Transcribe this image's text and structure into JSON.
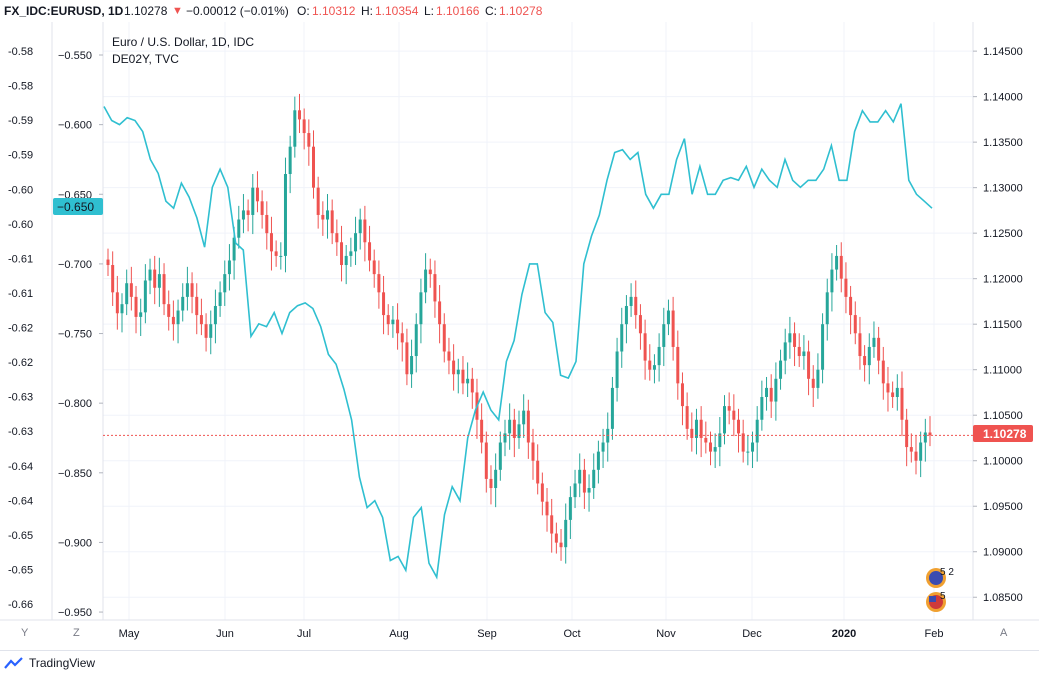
{
  "header": {
    "symbol": "FX_IDC:EURUSD, 1D",
    "last": "1.10278",
    "change": "−0.00012 (−0.01%)",
    "o_label": "O:",
    "o_value": "1.10312",
    "h_label": "H:",
    "h_value": "1.10354",
    "l_label": "L:",
    "l_value": "1.10166",
    "c_label": "C:",
    "c_value": "1.10278"
  },
  "legend": {
    "title": "Euro / U.S. Dollar, 1D, IDC",
    "overlay": "DE02Y, TVC"
  },
  "colors": {
    "up": "#26a69a",
    "down": "#ef5350",
    "overlay_line": "#2fbfd0",
    "price_badge": "#ef5350",
    "overlay_badge": "#2fbfd0",
    "grid": "#f0f3fa"
  },
  "footer": {
    "brand": "TradingView",
    "logo_icon": "tradingview-logo-icon"
  },
  "axis_buttons": {
    "left_y": "Y",
    "left_z": "Z",
    "right_a": "A"
  },
  "chart_data": [
    {
      "type": "candlestick",
      "series_name": "EURUSD",
      "x": [
        "May",
        "Jun",
        "Jul",
        "Aug",
        "Sep",
        "Oct",
        "Nov",
        "Dec",
        "2020",
        "Feb"
      ],
      "y_axis_right": {
        "ticks": [
          "1.14500",
          "1.14000",
          "1.13500",
          "1.13000",
          "1.12500",
          "1.12000",
          "1.11500",
          "1.11000",
          "1.10500",
          "1.10000",
          "1.09500",
          "1.09000",
          "1.08500"
        ],
        "ylim": [
          1.0825,
          1.1482
        ]
      },
      "closes": [
        1.1215,
        1.1185,
        1.1162,
        1.1172,
        1.1195,
        1.118,
        1.1158,
        1.1163,
        1.1198,
        1.121,
        1.119,
        1.1205,
        1.1172,
        1.1158,
        1.115,
        1.1165,
        1.118,
        1.1195,
        1.118,
        1.116,
        1.115,
        1.1135,
        1.115,
        1.117,
        1.1185,
        1.1205,
        1.122,
        1.1245,
        1.1265,
        1.1275,
        1.127,
        1.13,
        1.1285,
        1.127,
        1.125,
        1.123,
        1.1225,
        1.1225,
        1.1315,
        1.1345,
        1.1385,
        1.1375,
        1.136,
        1.1345,
        1.13,
        1.127,
        1.1265,
        1.1275,
        1.125,
        1.124,
        1.1215,
        1.1225,
        1.123,
        1.125,
        1.1265,
        1.124,
        1.122,
        1.1205,
        1.1185,
        1.116,
        1.115,
        1.1155,
        1.114,
        1.113,
        1.1095,
        1.1115,
        1.115,
        1.1185,
        1.121,
        1.1205,
        1.1175,
        1.115,
        1.112,
        1.111,
        1.1095,
        1.11,
        1.1085,
        1.109,
        1.1075,
        1.1045,
        1.102,
        1.098,
        1.097,
        1.099,
        1.102,
        1.103,
        1.1045,
        1.1025,
        1.104,
        1.1055,
        1.102,
        1.1,
        1.0975,
        1.0955,
        1.094,
        1.092,
        1.091,
        1.0905,
        1.0935,
        1.096,
        1.0975,
        1.099,
        1.0965,
        1.097,
        1.099,
        1.101,
        1.102,
        1.1035,
        1.108,
        1.112,
        1.115,
        1.117,
        1.118,
        1.116,
        1.114,
        1.111,
        1.11,
        1.1105,
        1.1125,
        1.115,
        1.1165,
        1.1125,
        1.1085,
        1.106,
        1.1035,
        1.1025,
        1.1045,
        1.1025,
        1.102,
        1.101,
        1.1015,
        1.103,
        1.106,
        1.1055,
        1.1045,
        1.103,
        1.101,
        1.101,
        1.102,
        1.1045,
        1.107,
        1.108,
        1.1065,
        1.109,
        1.111,
        1.113,
        1.114,
        1.1125,
        1.1115,
        1.112,
        1.109,
        1.108,
        1.11,
        1.115,
        1.1185,
        1.121,
        1.1225,
        1.12,
        1.118,
        1.116,
        1.114,
        1.1115,
        1.1105,
        1.1125,
        1.1135,
        1.111,
        1.1085,
        1.1075,
        1.107,
        1.108,
        1.1045,
        1.1015,
        1.101,
        1.1,
        1.102,
        1.1031,
        1.1028
      ]
    },
    {
      "type": "line",
      "series_name": "DE02Y, TVC",
      "y_axis_left_outer": {
        "ticks": [
          "-0.58",
          "-0.58",
          "-0.59",
          "-0.59",
          "-0.60",
          "-0.60",
          "-0.61",
          "-0.61",
          "-0.62",
          "-0.62",
          "-0.63",
          "-0.63",
          "-0.64",
          "-0.64",
          "-0.65",
          "-0.65",
          "-0.66"
        ]
      },
      "y_axis_left": {
        "ticks": [
          "−0.550",
          "−0.600",
          "−0.650",
          "−0.700",
          "−0.750",
          "−0.800",
          "−0.850",
          "−0.900",
          "−0.950"
        ],
        "ylim": [
          -0.9557,
          -0.5263
        ]
      },
      "values": [
        -0.587,
        -0.597,
        -0.6,
        -0.595,
        -0.597,
        -0.605,
        -0.625,
        -0.635,
        -0.655,
        -0.66,
        -0.642,
        -0.652,
        -0.667,
        -0.688,
        -0.645,
        -0.632,
        -0.645,
        -0.685,
        -0.69,
        -0.752,
        -0.743,
        -0.745,
        -0.735,
        -0.75,
        -0.735,
        -0.73,
        -0.728,
        -0.732,
        -0.745,
        -0.765,
        -0.772,
        -0.79,
        -0.812,
        -0.853,
        -0.875,
        -0.87,
        -0.882,
        -0.913,
        -0.91,
        -0.92,
        -0.882,
        -0.875,
        -0.915,
        -0.925,
        -0.88,
        -0.86,
        -0.87,
        -0.825,
        -0.805,
        -0.792,
        -0.805,
        -0.812,
        -0.77,
        -0.755,
        -0.722,
        -0.7,
        -0.7,
        -0.735,
        -0.742,
        -0.78,
        -0.782,
        -0.77,
        -0.7,
        -0.68,
        -0.665,
        -0.64,
        -0.62,
        -0.618,
        -0.625,
        -0.62,
        -0.65,
        -0.66,
        -0.65,
        -0.65,
        -0.625,
        -0.61,
        -0.65,
        -0.63,
        -0.65,
        -0.65,
        -0.64,
        -0.638,
        -0.64,
        -0.63,
        -0.645,
        -0.632,
        -0.64,
        -0.645,
        -0.625,
        -0.64,
        -0.645,
        -0.64,
        -0.64,
        -0.632,
        -0.615,
        -0.64,
        -0.64,
        -0.605,
        -0.59,
        -0.598,
        -0.598,
        -0.59,
        -0.598,
        -0.585,
        -0.64,
        -0.65,
        -0.655,
        -0.66
      ]
    }
  ]
}
